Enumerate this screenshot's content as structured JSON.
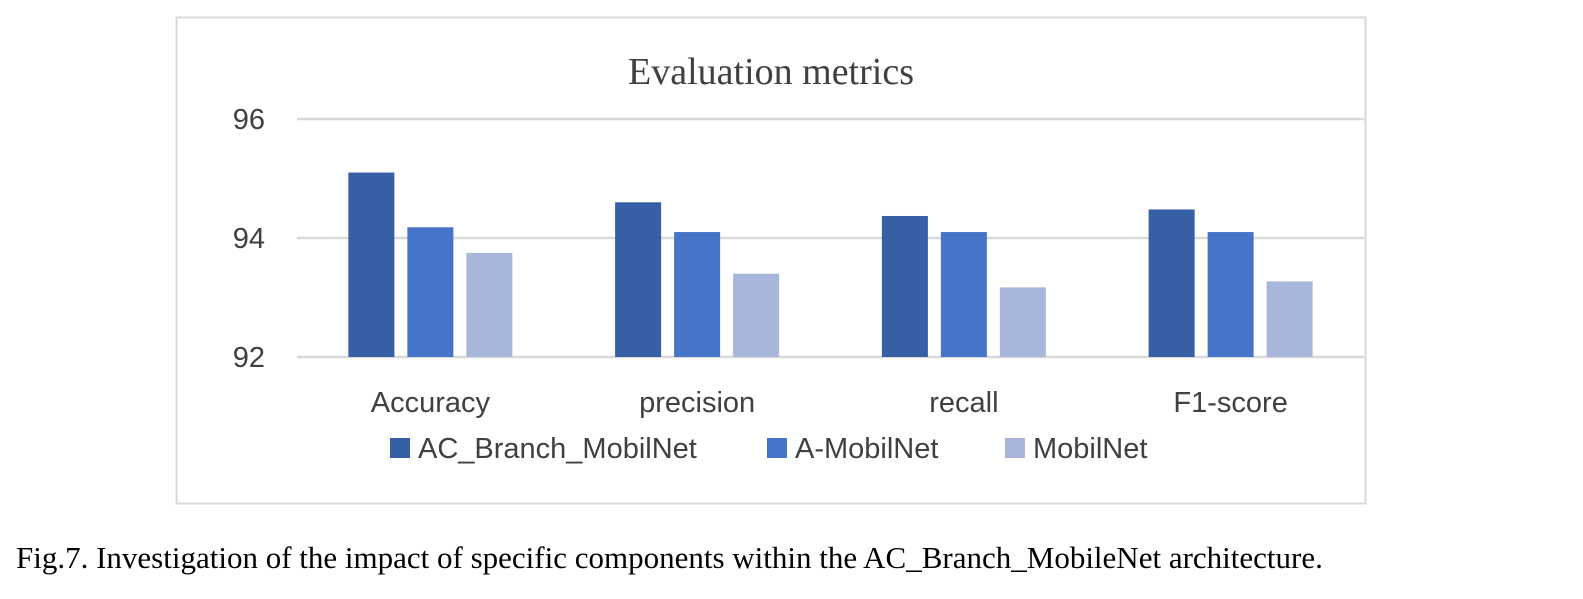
{
  "caption": "Fig.7. Investigation of the impact of specific components within the AC_Branch_MobileNet architecture.",
  "colors": {
    "frame": "#d9d9d9",
    "grid": "#d9d9d9",
    "text": "#404040"
  },
  "chart_data": {
    "type": "bar",
    "title": "Evaluation metrics",
    "xlabel": "",
    "ylabel": "",
    "categories": [
      "Accuracy",
      "precision",
      "recall",
      "F1-score"
    ],
    "series": [
      {
        "name": "AC_Branch_MobilNet",
        "color": "#365fa5",
        "values": [
          95.1,
          94.6,
          94.37,
          94.48
        ]
      },
      {
        "name": "A-MobilNet",
        "color": "#4674c8",
        "values": [
          94.18,
          94.1,
          94.1,
          94.1
        ]
      },
      {
        "name": "MobilNet",
        "color": "#a9b6dc",
        "values": [
          93.75,
          93.4,
          93.17,
          93.27
        ]
      }
    ],
    "yticks": [
      "92",
      "94",
      "96"
    ],
    "ylim": [
      92,
      96
    ],
    "grid": true,
    "legend_position": "bottom"
  }
}
